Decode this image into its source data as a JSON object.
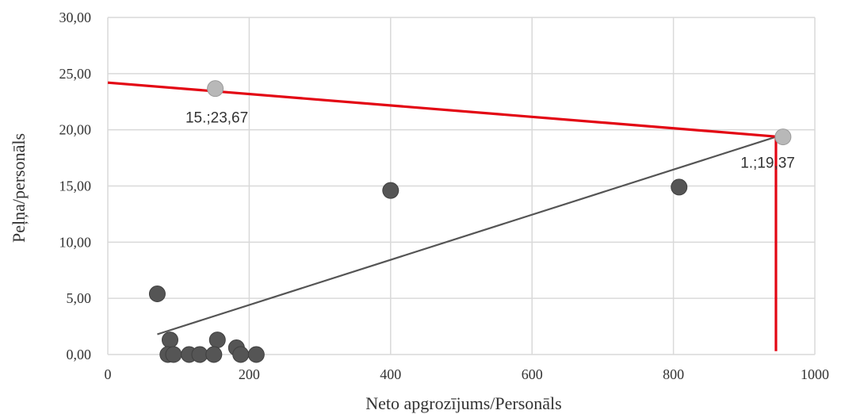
{
  "chart_data": {
    "type": "scatter",
    "title": "",
    "xlabel": "Neto apgrozījums/Personāls",
    "ylabel": "Peļņa/personāls",
    "xlim": [
      0,
      1000
    ],
    "ylim": [
      0,
      30
    ],
    "x_ticks": [
      0,
      200,
      400,
      600,
      800,
      1000
    ],
    "x_tick_labels": [
      "0",
      "200",
      "400",
      "600",
      "800",
      "1000"
    ],
    "y_ticks": [
      0,
      5,
      10,
      15,
      20,
      25,
      30
    ],
    "y_tick_labels": [
      "0,00",
      "5,00",
      "10,00",
      "15,00",
      "20,00",
      "25,00",
      "30,00"
    ],
    "grid": true,
    "legend": "none",
    "series": [
      {
        "points": [
          {
            "x": 70,
            "y": 5.4
          },
          {
            "x": 88,
            "y": 1.3
          },
          {
            "x": 85,
            "y": 0.0
          },
          {
            "x": 93,
            "y": 0.0
          },
          {
            "x": 115,
            "y": 0.0
          },
          {
            "x": 130,
            "y": 0.0
          },
          {
            "x": 155,
            "y": 1.3
          },
          {
            "x": 150,
            "y": 0.0
          },
          {
            "x": 182,
            "y": 0.6
          },
          {
            "x": 188,
            "y": 0.0
          },
          {
            "x": 210,
            "y": 0.0
          },
          {
            "x": 400,
            "y": 14.6
          },
          {
            "x": 808,
            "y": 14.9
          }
        ],
        "color": "#555555"
      }
    ],
    "highlighted_points": [
      {
        "x": 152,
        "y": 23.67,
        "label": "15.;23,67",
        "color": "#b8b8b8"
      },
      {
        "x": 955,
        "y": 19.37,
        "label": "1.;19,37",
        "color": "#b8b8b8"
      }
    ],
    "trendline": {
      "from": {
        "x": 70,
        "y": 1.8
      },
      "to": {
        "x": 945,
        "y": 19.37
      },
      "color": "#555555"
    },
    "frontier": {
      "points": [
        {
          "x": 0,
          "y": 24.2
        },
        {
          "x": 945,
          "y": 19.4
        },
        {
          "x": 945,
          "y": 0.3
        }
      ],
      "color": "#e30613"
    }
  }
}
